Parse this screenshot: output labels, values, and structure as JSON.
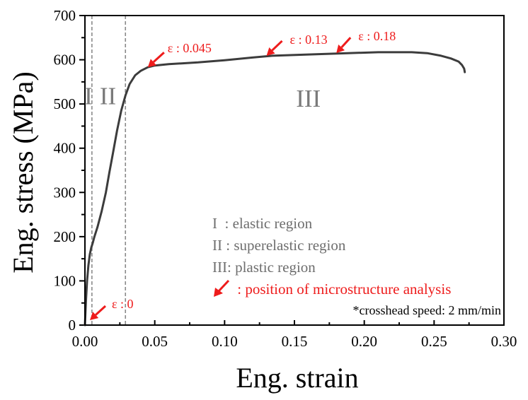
{
  "chart_data": {
    "type": "line",
    "title": "",
    "xlabel": "Eng. strain",
    "ylabel": "Eng. stress (MPa)",
    "xlim": [
      0,
      0.3
    ],
    "ylim": [
      0,
      700
    ],
    "grid": false,
    "xticks": [
      0.0,
      0.05,
      0.1,
      0.15,
      0.2,
      0.25,
      0.3
    ],
    "xtick_labels": [
      "0.00",
      "0.05",
      "0.10",
      "0.15",
      "0.20",
      "0.25",
      "0.30"
    ],
    "xminor": [
      0.025,
      0.075,
      0.125,
      0.175,
      0.225,
      0.275
    ],
    "yticks": [
      0,
      100,
      200,
      300,
      400,
      500,
      600,
      700
    ],
    "ytick_labels": [
      "0",
      "100",
      "200",
      "300",
      "400",
      "500",
      "600",
      "700"
    ],
    "yminor": [
      50,
      150,
      250,
      350,
      450,
      550,
      650
    ],
    "series": [
      {
        "name": "stress-strain curve",
        "color": "#3c3c3c",
        "x": [
          0.0,
          0.0008,
          0.0015,
          0.0025,
          0.0035,
          0.0045,
          0.0055,
          0.0068,
          0.009,
          0.012,
          0.015,
          0.0175,
          0.02,
          0.023,
          0.026,
          0.029,
          0.032,
          0.036,
          0.04,
          0.045,
          0.05,
          0.06,
          0.07,
          0.081,
          0.1,
          0.12,
          0.134,
          0.16,
          0.188,
          0.21,
          0.223,
          0.234,
          0.245,
          0.255,
          0.262,
          0.2675,
          0.27,
          0.2715,
          0.272
        ],
        "y": [
          0,
          60,
          100,
          135,
          160,
          175,
          185,
          200,
          222,
          258,
          300,
          345,
          388,
          440,
          485,
          519,
          545,
          565,
          575,
          583,
          587,
          590,
          592,
          594,
          599,
          605,
          609,
          612,
          615,
          617,
          617,
          617,
          615,
          609,
          603,
          596,
          588,
          580,
          572
        ]
      }
    ],
    "vlines": [
      {
        "x": 0.005,
        "style": "dashed",
        "color": "#8a8a8a"
      },
      {
        "x": 0.029,
        "style": "dashed",
        "color": "#8a8a8a"
      }
    ],
    "region_labels": [
      {
        "text": "I",
        "x": 0.0025,
        "y": 520
      },
      {
        "text": "II",
        "x": 0.0165,
        "y": 520
      },
      {
        "text": "III",
        "x": 0.16,
        "y": 515
      }
    ],
    "annotations": [
      {
        "text": "ε : 0",
        "strain": 0.0,
        "stress": 0,
        "color": "#ee1c1c"
      },
      {
        "text": "ε : 0.045",
        "strain": 0.045,
        "stress": 583,
        "color": "#ee1c1c"
      },
      {
        "text": "ε : 0.13",
        "strain": 0.13,
        "stress": 609,
        "color": "#ee1c1c"
      },
      {
        "text": "ε : 0.18",
        "strain": 0.18,
        "stress": 615,
        "color": "#ee1c1c"
      }
    ],
    "legend": {
      "placement": "bottom-right",
      "entries": [
        {
          "marker": "I",
          "text": "  : elastic region",
          "color": "#6e6e6e"
        },
        {
          "marker": "II",
          "text": " : superelastic region",
          "color": "#6e6e6e"
        },
        {
          "marker": "III",
          "text": ": plastic region",
          "color": "#6e6e6e"
        },
        {
          "marker": "red-arrow",
          "text": " : position of microstructure analysis",
          "color": "#ee1c1c"
        }
      ],
      "note": "*crosshead speed: 2 mm/min"
    }
  },
  "colors": {
    "curve": "#3c3c3c",
    "annotation": "#ee1c1c",
    "region": "#7a7a7a",
    "axis": "#000000"
  }
}
